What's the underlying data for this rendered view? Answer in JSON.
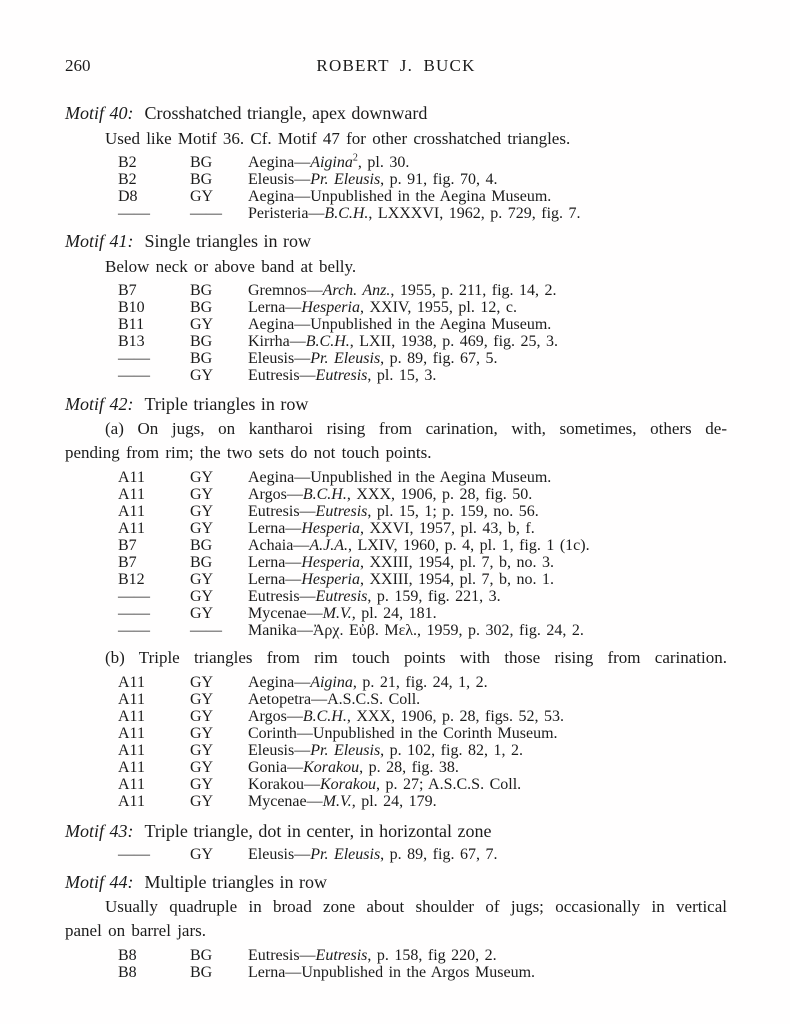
{
  "page": {
    "number": "260",
    "running_head": "ROBERT J. BUCK"
  },
  "sections": [
    {
      "label": "Motif 40:",
      "title": "Crosshatched triangle, apex downward",
      "note": "Used like Motif 36. Cf. Motif 47 for other crosshatched triangles.",
      "entries": [
        {
          "code": "B2",
          "ware": "BG",
          "pre": "Aegina—",
          "italic": "Aigina",
          "sup": "2",
          "rest": ", pl. 30."
        },
        {
          "code": "B2",
          "ware": "BG",
          "pre": "Eleusis—",
          "italic": "Pr. Eleusis",
          "rest": ", p. 91, fig. 70, 4."
        },
        {
          "code": "D8",
          "ware": "GY",
          "pre": "Aegina—",
          "italic": "",
          "rest": "Unpublished in the Aegina Museum."
        },
        {
          "code": "——",
          "ware": "——",
          "pre": "Peristeria—",
          "italic": "B.C.H.",
          "rest": ", LXXXVI, 1962, p. 729, fig. 7."
        }
      ]
    },
    {
      "label": "Motif 41:",
      "title": "Single triangles in row",
      "note": "Below neck or above band at belly.",
      "entries": [
        {
          "code": "B7",
          "ware": "BG",
          "pre": "Gremnos—",
          "italic": "Arch. Anz.",
          "rest": ", 1955, p. 211, fig. 14, 2."
        },
        {
          "code": "B10",
          "ware": "BG",
          "pre": "Lerna—",
          "italic": "Hesperia",
          "rest": ", XXIV, 1955, pl. 12, c."
        },
        {
          "code": "B11",
          "ware": "GY",
          "pre": "Aegina—",
          "italic": "",
          "rest": "Unpublished in the Aegina Museum."
        },
        {
          "code": "B13",
          "ware": "BG",
          "pre": "Kirrha—",
          "italic": "B.C.H.",
          "rest": ", LXII, 1938, p. 469, fig. 25, 3."
        },
        {
          "code": "——",
          "ware": "BG",
          "pre": "Eleusis—",
          "italic": "Pr. Eleusis",
          "rest": ", p. 89, fig. 67, 5."
        },
        {
          "code": "——",
          "ware": "GY",
          "pre": "Eutresis—",
          "italic": "Eutresis",
          "rest": ", pl. 15, 3."
        }
      ]
    },
    {
      "label": "Motif 42:",
      "title": "Triple triangles in row",
      "para_a_line1": "(a) On jugs, on kantharoi rising from carination, with, sometimes, others de-",
      "para_a_line2": "pending from rim; the two sets do not touch points.",
      "entries_a": [
        {
          "code": "A11",
          "ware": "GY",
          "pre": "Aegina—",
          "italic": "",
          "rest": "Unpublished in the Aegina Museum."
        },
        {
          "code": "A11",
          "ware": "GY",
          "pre": "Argos—",
          "italic": "B.C.H.",
          "rest": ", XXX, 1906, p. 28, fig. 50."
        },
        {
          "code": "A11",
          "ware": "GY",
          "pre": "Eutresis—",
          "italic": "Eutresis",
          "rest": ", pl. 15, 1; p. 159, no. 56."
        },
        {
          "code": "A11",
          "ware": "GY",
          "pre": "Lerna—",
          "italic": "Hesperia",
          "rest": ", XXVI, 1957, pl. 43, b, f."
        },
        {
          "code": "B7",
          "ware": "BG",
          "pre": "Achaia—",
          "italic": "A.J.A.",
          "rest": ", LXIV, 1960, p. 4, pl. 1, fig. 1 (1c)."
        },
        {
          "code": "B7",
          "ware": "BG",
          "pre": "Lerna—",
          "italic": "Hesperia",
          "rest": ", XXIII, 1954, pl. 7, b, no. 3."
        },
        {
          "code": "B12",
          "ware": "GY",
          "pre": "Lerna—",
          "italic": "Hesperia",
          "rest": ", XXIII, 1954, pl. 7, b, no. 1."
        },
        {
          "code": "——",
          "ware": "GY",
          "pre": "Eutresis—",
          "italic": "Eutresis",
          "rest": ", p. 159, fig. 221, 3."
        },
        {
          "code": "——",
          "ware": "GY",
          "pre": "Mycenae—",
          "italic": "M.V.",
          "rest": ", pl. 24, 181."
        },
        {
          "code": "——",
          "ware": "——",
          "pre": "Manika—",
          "italic": "",
          "rest": "Ἀρχ. Εὐβ. Μελ., 1959, p. 302, fig. 24, 2."
        }
      ],
      "para_b": "(b) Triple triangles from rim touch points with those rising from carination.",
      "entries_b": [
        {
          "code": "A11",
          "ware": "GY",
          "pre": "Aegina—",
          "italic": "Aigina",
          "rest": ", p. 21, fig. 24, 1, 2."
        },
        {
          "code": "A11",
          "ware": "GY",
          "pre": "Aetopetra—",
          "italic": "",
          "rest": "A.S.C.S. Coll."
        },
        {
          "code": "A11",
          "ware": "GY",
          "pre": "Argos—",
          "italic": "B.C.H.",
          "rest": ", XXX, 1906, p. 28, figs. 52, 53."
        },
        {
          "code": "A11",
          "ware": "GY",
          "pre": "Corinth—",
          "italic": "",
          "rest": "Unpublished in the Corinth Museum."
        },
        {
          "code": "A11",
          "ware": "GY",
          "pre": "Eleusis—",
          "italic": "Pr. Eleusis",
          "rest": ", p. 102, fig. 82, 1, 2."
        },
        {
          "code": "A11",
          "ware": "GY",
          "pre": "Gonia—",
          "italic": "Korakou",
          "rest": ", p. 28, fig. 38."
        },
        {
          "code": "A11",
          "ware": "GY",
          "pre": "Korakou—",
          "italic": "Korakou",
          "rest": ", p. 27; A.S.C.S. Coll."
        },
        {
          "code": "A11",
          "ware": "GY",
          "pre": "Mycenae—",
          "italic": "M.V.",
          "rest": ", pl. 24, 179."
        }
      ]
    },
    {
      "label": "Motif 43:",
      "title": "Triple triangle, dot in center, in horizontal zone",
      "entries": [
        {
          "code": "——",
          "ware": "GY",
          "pre": "Eleusis—",
          "italic": "Pr. Eleusis",
          "rest": ", p. 89, fig. 67, 7."
        }
      ]
    },
    {
      "label": "Motif 44:",
      "title": "Multiple triangles in row",
      "para_line1": "Usually quadruple in broad zone about shoulder of jugs; occasionally in vertical",
      "para_line2": "panel on barrel jars.",
      "entries": [
        {
          "code": "B8",
          "ware": "BG",
          "pre": "Eutresis—",
          "italic": "Eutresis",
          "rest": ", p. 158, fig 220, 2."
        },
        {
          "code": "B8",
          "ware": "BG",
          "pre": "Lerna—",
          "italic": "",
          "rest": "Unpublished in the Argos Museum."
        }
      ]
    }
  ]
}
